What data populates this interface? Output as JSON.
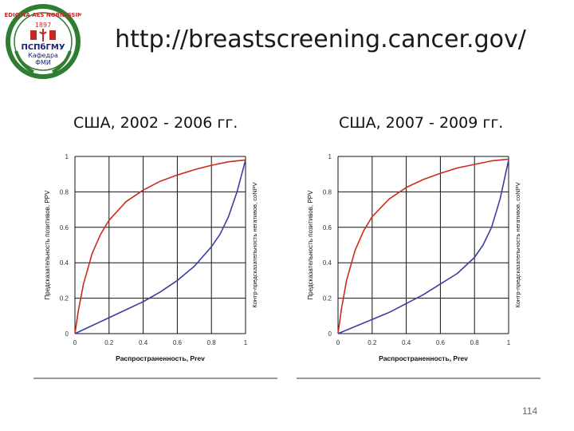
{
  "slide": {
    "title": "http://breastscreening.cancer.gov/",
    "page_number": "114",
    "logo": {
      "top_text": "MEDICINA AES NOBILISSIMA",
      "year": "1897",
      "org": "ПСПбГМУ",
      "dept_line1": "Кафедра",
      "dept_line2": "ФМИ",
      "ring_color": "#2e7d32",
      "text_color": "#c62828"
    }
  },
  "charts_meta": [
    {
      "heading": "США, 2002 - 2006 гг."
    },
    {
      "heading": "США, 2007 - 2009 гг."
    }
  ],
  "chart_data": [
    {
      "type": "line",
      "xlabel": "Распространенность, Prev",
      "ylabel": "Предсказательность позитивов, PPV",
      "ylabel_right": "Контр-предсказательность негативов, coNPV",
      "xlim": [
        0,
        1
      ],
      "ylim": [
        0,
        1
      ],
      "x_ticks": [
        "0",
        "0.2",
        "0.4",
        "0.6",
        "0.8",
        "1"
      ],
      "y_ticks": [
        "0",
        "0.2",
        "0.4",
        "0.6",
        "0.8",
        "1"
      ],
      "grid": true,
      "series": [
        {
          "color": "#cc2a1a",
          "points": [
            [
              0,
              0
            ],
            [
              0.02,
              0.13
            ],
            [
              0.05,
              0.28
            ],
            [
              0.1,
              0.45
            ],
            [
              0.15,
              0.56
            ],
            [
              0.2,
              0.64
            ],
            [
              0.3,
              0.745
            ],
            [
              0.4,
              0.81
            ],
            [
              0.5,
              0.86
            ],
            [
              0.6,
              0.895
            ],
            [
              0.7,
              0.925
            ],
            [
              0.8,
              0.95
            ],
            [
              0.9,
              0.97
            ],
            [
              1,
              0.98
            ]
          ]
        },
        {
          "color": "#3a3fa0",
          "points": [
            [
              0,
              0
            ],
            [
              0.1,
              0.045
            ],
            [
              0.2,
              0.09
            ],
            [
              0.3,
              0.135
            ],
            [
              0.4,
              0.18
            ],
            [
              0.5,
              0.235
            ],
            [
              0.6,
              0.3
            ],
            [
              0.7,
              0.38
            ],
            [
              0.8,
              0.49
            ],
            [
              0.85,
              0.56
            ],
            [
              0.9,
              0.66
            ],
            [
              0.95,
              0.8
            ],
            [
              1,
              0.98
            ]
          ]
        }
      ]
    },
    {
      "type": "line",
      "xlabel": "Распространенность, Prev",
      "ylabel": "Предсказательность позитивов, PPV",
      "ylabel_right": "Контр-предсказательность негативов, coNPV",
      "xlim": [
        0,
        1
      ],
      "ylim": [
        0,
        1
      ],
      "x_ticks": [
        "0",
        "0.2",
        "0.4",
        "0.6",
        "0.8",
        "1"
      ],
      "y_ticks": [
        "0",
        "0.2",
        "0.4",
        "0.6",
        "0.8",
        "1"
      ],
      "grid": true,
      "series": [
        {
          "color": "#cc2a1a",
          "points": [
            [
              0,
              0
            ],
            [
              0.02,
              0.14
            ],
            [
              0.05,
              0.3
            ],
            [
              0.1,
              0.47
            ],
            [
              0.15,
              0.58
            ],
            [
              0.2,
              0.66
            ],
            [
              0.3,
              0.76
            ],
            [
              0.4,
              0.825
            ],
            [
              0.5,
              0.87
            ],
            [
              0.6,
              0.905
            ],
            [
              0.7,
              0.935
            ],
            [
              0.8,
              0.955
            ],
            [
              0.9,
              0.975
            ],
            [
              1,
              0.985
            ]
          ]
        },
        {
          "color": "#3a3fa0",
          "points": [
            [
              0,
              0
            ],
            [
              0.1,
              0.04
            ],
            [
              0.2,
              0.08
            ],
            [
              0.3,
              0.12
            ],
            [
              0.4,
              0.17
            ],
            [
              0.5,
              0.22
            ],
            [
              0.6,
              0.28
            ],
            [
              0.7,
              0.34
            ],
            [
              0.8,
              0.43
            ],
            [
              0.85,
              0.5
            ],
            [
              0.9,
              0.6
            ],
            [
              0.95,
              0.76
            ],
            [
              1,
              0.98
            ]
          ]
        }
      ]
    }
  ]
}
